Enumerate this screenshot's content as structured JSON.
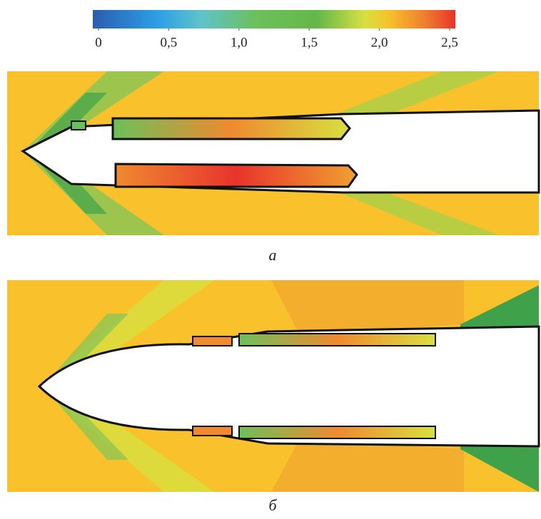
{
  "colorbar": {
    "lim": [
      0,
      2.5
    ],
    "ticks": [
      0,
      {
        "value": 0.5,
        "label": "0,5"
      },
      {
        "value": 1.0,
        "label": "1,0"
      },
      {
        "value": 1.5,
        "label": "1,5"
      },
      {
        "value": 2.0,
        "label": "2,0"
      },
      {
        "value": 2.5,
        "label": "2,5"
      }
    ]
  },
  "panels": [
    {
      "label": "а"
    },
    {
      "label": "б"
    }
  ]
}
